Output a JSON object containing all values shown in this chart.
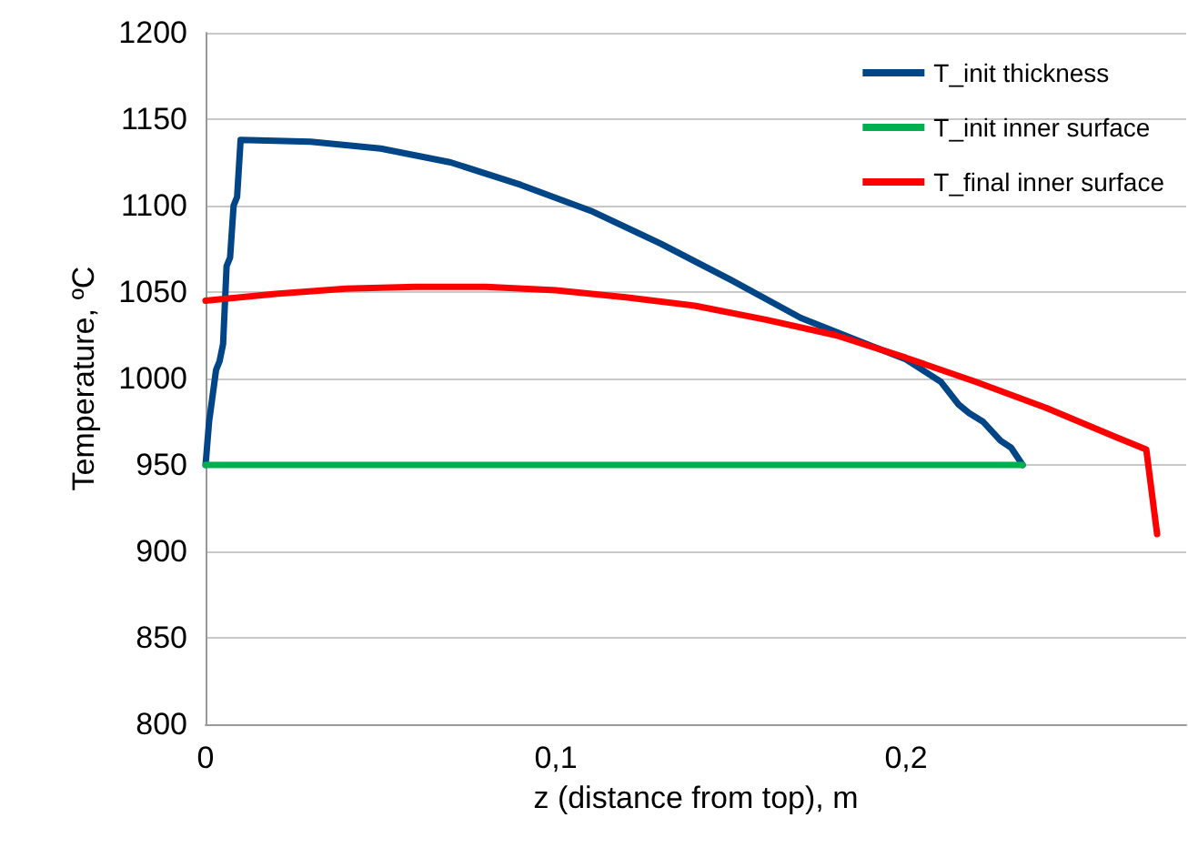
{
  "chart_data": {
    "type": "line",
    "xlabel": "z (distance from top), m",
    "ylabel": "Temperature, ºC",
    "xlim": [
      0,
      0.28
    ],
    "xticks": [
      0,
      {
        "value": 0.1,
        "label": "0,1"
      },
      {
        "value": 0.2,
        "label": "0,2"
      }
    ],
    "ylim": [
      800,
      1200
    ],
    "yticks": [
      800,
      850,
      900,
      950,
      1000,
      1050,
      1100,
      1150,
      1200
    ],
    "grid": "y",
    "legend": "top right",
    "marker": "none",
    "line_style": "solid",
    "series": [
      {
        "name": "T_init thickness",
        "color": "#004586",
        "x": [
          0,
          0.001,
          0.002,
          0.003,
          0.004,
          0.005,
          0.006,
          0.007,
          0.008,
          0.009,
          0.01,
          0.03,
          0.05,
          0.07,
          0.09,
          0.11,
          0.13,
          0.15,
          0.17,
          0.19,
          0.2,
          0.21,
          0.215,
          0.218,
          0.222,
          0.227,
          0.23,
          0.2333
        ],
        "values": [
          950,
          975,
          990,
          1005,
          1010,
          1020,
          1065,
          1070,
          1100,
          1105,
          1138,
          1137,
          1133,
          1125,
          1112,
          1097,
          1078,
          1057,
          1035,
          1019,
          1011,
          998,
          985,
          980,
          975,
          964,
          960,
          950
        ]
      },
      {
        "name": "T_init inner surface",
        "color": "#00b050",
        "x": [
          0,
          0.2333
        ],
        "values": [
          950,
          950
        ]
      },
      {
        "name": "T_final inner surface",
        "color": "#ff0000",
        "x": [
          0,
          0.02,
          0.04,
          0.06,
          0.08,
          0.1,
          0.12,
          0.14,
          0.16,
          0.18,
          0.2,
          0.22,
          0.24,
          0.26,
          0.2686,
          0.2717
        ],
        "values": [
          1045,
          1049,
          1052,
          1053,
          1053,
          1051,
          1047,
          1042,
          1034,
          1025,
          1012,
          998,
          983,
          966,
          959,
          910
        ]
      }
    ]
  }
}
